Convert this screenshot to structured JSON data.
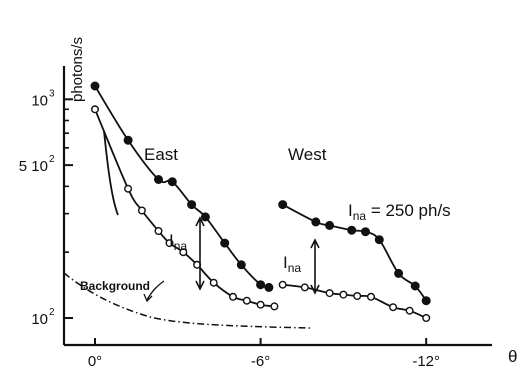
{
  "chart_data": {
    "type": "scatter",
    "xlabel": "θ",
    "ylabel": "photons/s",
    "x_unit": "degrees",
    "xlim": [
      1.2,
      -14.5
    ],
    "ylim": [
      85,
      1400
    ],
    "yscale": "log",
    "grid": false,
    "x_ticks": [
      {
        "value": 0,
        "label": "0°"
      },
      {
        "value": -6,
        "label": "-6°"
      },
      {
        "value": -12,
        "label": "-12°"
      }
    ],
    "y_ticks": [
      {
        "value": 100,
        "label": "10",
        "exp": "2"
      },
      {
        "value": 500,
        "label": "5 10",
        "exp": "2"
      },
      {
        "value": 1000,
        "label": "10",
        "exp": "3"
      }
    ],
    "annotations": {
      "east": "East",
      "west": "West",
      "ina_east": "I",
      "ina_west": "I",
      "ina_sub": "na",
      "ina_value_prefix": "I",
      "ina_value_sub": "na",
      "ina_value_text": " = 250 ph/s",
      "background": "Background"
    },
    "series": [
      {
        "role": "east-filled",
        "marker": "filled",
        "points": [
          [
            0,
            1150
          ],
          [
            -1.2,
            650
          ],
          [
            -2.3,
            430
          ],
          [
            -2.8,
            420
          ],
          [
            -3.5,
            330
          ],
          [
            -4.0,
            290
          ],
          [
            -4.7,
            220
          ],
          [
            -5.3,
            175
          ],
          [
            -6.0,
            142
          ],
          [
            -6.3,
            138
          ]
        ]
      },
      {
        "role": "east-open",
        "marker": "open",
        "points": [
          [
            0,
            900
          ],
          [
            -1.2,
            390
          ],
          [
            -1.7,
            310
          ],
          [
            -2.3,
            250
          ],
          [
            -2.7,
            220
          ],
          [
            -3.2,
            200
          ],
          [
            -3.7,
            175
          ],
          [
            -4.3,
            145
          ],
          [
            -5.0,
            125
          ],
          [
            -5.5,
            120
          ],
          [
            -6.0,
            115
          ],
          [
            -6.5,
            113
          ]
        ]
      },
      {
        "role": "west-filled",
        "marker": "filled",
        "points": [
          [
            -6.8,
            330
          ],
          [
            -8.0,
            275
          ],
          [
            -8.5,
            265
          ],
          [
            -9.3,
            252
          ],
          [
            -9.8,
            248
          ],
          [
            -10.3,
            228
          ],
          [
            -11.0,
            160
          ],
          [
            -11.6,
            140
          ],
          [
            -12.0,
            120
          ]
        ]
      },
      {
        "role": "west-open",
        "marker": "open",
        "points": [
          [
            -6.8,
            142
          ],
          [
            -7.6,
            138
          ],
          [
            -8.5,
            130
          ],
          [
            -9.0,
            128
          ],
          [
            -9.5,
            126
          ],
          [
            -10.0,
            125
          ],
          [
            -10.8,
            112
          ],
          [
            -11.4,
            108
          ],
          [
            -12.0,
            100
          ]
        ]
      }
    ]
  }
}
